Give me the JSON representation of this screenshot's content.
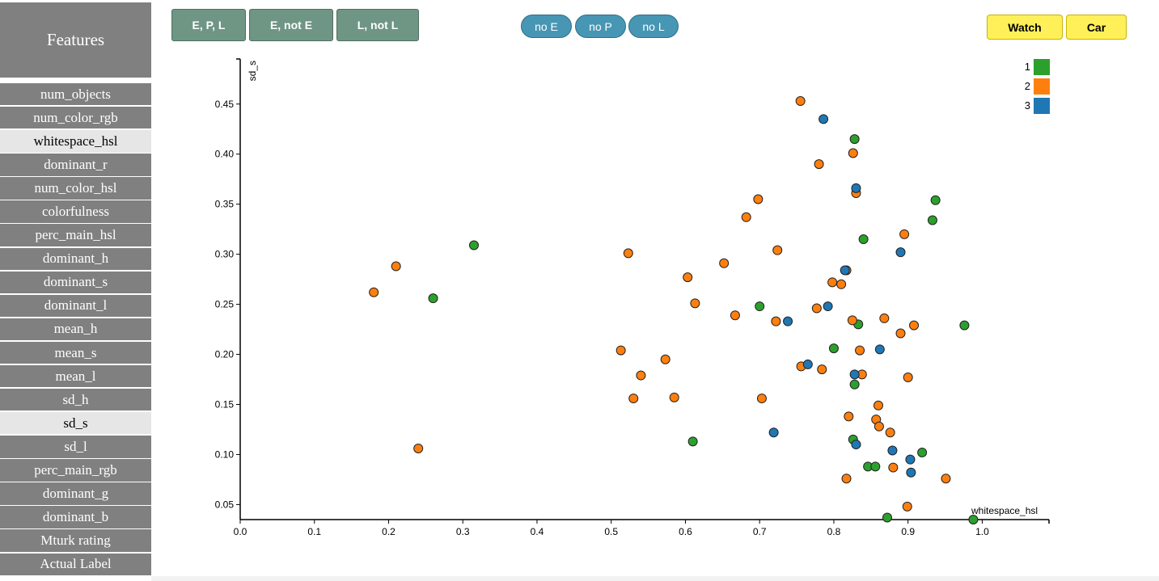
{
  "sidebar": {
    "title": "Features",
    "items": [
      {
        "label": "num_objects",
        "selected": false
      },
      {
        "label": "num_color_rgb",
        "selected": false
      },
      {
        "label": "whitespace_hsl",
        "selected": true
      },
      {
        "label": "dominant_r",
        "selected": false
      },
      {
        "label": "num_color_hsl",
        "selected": false
      },
      {
        "label": "colorfulness",
        "selected": false
      },
      {
        "label": "perc_main_hsl",
        "selected": false
      },
      {
        "label": "dominant_h",
        "selected": false
      },
      {
        "label": "dominant_s",
        "selected": false
      },
      {
        "label": "dominant_l",
        "selected": false
      },
      {
        "label": "mean_h",
        "selected": false
      },
      {
        "label": "mean_s",
        "selected": false
      },
      {
        "label": "mean_l",
        "selected": false
      },
      {
        "label": "sd_h",
        "selected": false
      },
      {
        "label": "sd_s",
        "selected": true
      },
      {
        "label": "sd_l",
        "selected": false
      },
      {
        "label": "perc_main_rgb",
        "selected": false
      },
      {
        "label": "dominant_g",
        "selected": false
      },
      {
        "label": "dominant_b",
        "selected": false
      },
      {
        "label": "Mturk rating",
        "selected": false
      },
      {
        "label": "Actual Label",
        "selected": false
      }
    ]
  },
  "toolbar": {
    "group_buttons": [
      "E, P, L",
      "E, not E",
      "L, not L"
    ],
    "filter_buttons": [
      "no E",
      "no P",
      "no L"
    ],
    "category_buttons": [
      "Watch",
      "Car"
    ]
  },
  "colors": {
    "series_1": "#2ca02c",
    "series_2": "#ff7f0e",
    "series_3": "#1f77b4"
  },
  "chart_data": {
    "type": "scatter",
    "xlabel": "whitespace_hsl",
    "ylabel": "sd_s",
    "xlim": [
      0.0,
      1.09
    ],
    "ylim": [
      0.035,
      0.495
    ],
    "xticks": [
      "0.0",
      "0.1",
      "0.2",
      "0.3",
      "0.4",
      "0.5",
      "0.6",
      "0.7",
      "0.8",
      "0.9",
      "1.0"
    ],
    "yticks": [
      "0.05",
      "0.10",
      "0.15",
      "0.20",
      "0.25",
      "0.30",
      "0.35",
      "0.40",
      "0.45"
    ],
    "legend": {
      "position": "top-right",
      "entries": [
        "1",
        "2",
        "3"
      ]
    },
    "series": [
      {
        "name": "1",
        "color": "#2ca02c",
        "points": [
          [
            0.315,
            0.309
          ],
          [
            0.26,
            0.256
          ],
          [
            0.7,
            0.248
          ],
          [
            0.61,
            0.113
          ],
          [
            0.828,
            0.415
          ],
          [
            0.937,
            0.354
          ],
          [
            0.933,
            0.334
          ],
          [
            0.84,
            0.315
          ],
          [
            0.833,
            0.23
          ],
          [
            0.976,
            0.229
          ],
          [
            0.8,
            0.206
          ],
          [
            0.828,
            0.17
          ],
          [
            0.826,
            0.115
          ],
          [
            0.919,
            0.102
          ],
          [
            0.846,
            0.088
          ],
          [
            0.856,
            0.088
          ],
          [
            0.872,
            0.037
          ],
          [
            0.988,
            0.035
          ]
        ]
      },
      {
        "name": "2",
        "color": "#ff7f0e",
        "points": [
          [
            0.755,
            0.453
          ],
          [
            0.826,
            0.401
          ],
          [
            0.78,
            0.39
          ],
          [
            0.83,
            0.361
          ],
          [
            0.698,
            0.355
          ],
          [
            0.682,
            0.337
          ],
          [
            0.895,
            0.32
          ],
          [
            0.523,
            0.301
          ],
          [
            0.724,
            0.304
          ],
          [
            0.652,
            0.291
          ],
          [
            0.817,
            0.284
          ],
          [
            0.603,
            0.277
          ],
          [
            0.21,
            0.288
          ],
          [
            0.18,
            0.262
          ],
          [
            0.798,
            0.272
          ],
          [
            0.81,
            0.27
          ],
          [
            0.613,
            0.251
          ],
          [
            0.667,
            0.239
          ],
          [
            0.777,
            0.246
          ],
          [
            0.722,
            0.233
          ],
          [
            0.825,
            0.234
          ],
          [
            0.868,
            0.236
          ],
          [
            0.908,
            0.229
          ],
          [
            0.89,
            0.221
          ],
          [
            0.513,
            0.204
          ],
          [
            0.573,
            0.195
          ],
          [
            0.835,
            0.204
          ],
          [
            0.756,
            0.188
          ],
          [
            0.784,
            0.185
          ],
          [
            0.54,
            0.179
          ],
          [
            0.838,
            0.18
          ],
          [
            0.9,
            0.177
          ],
          [
            0.53,
            0.156
          ],
          [
            0.585,
            0.157
          ],
          [
            0.703,
            0.156
          ],
          [
            0.86,
            0.149
          ],
          [
            0.82,
            0.138
          ],
          [
            0.857,
            0.135
          ],
          [
            0.861,
            0.128
          ],
          [
            0.876,
            0.122
          ],
          [
            0.24,
            0.106
          ],
          [
            0.88,
            0.087
          ],
          [
            0.951,
            0.076
          ],
          [
            0.817,
            0.076
          ],
          [
            0.899,
            0.048
          ]
        ]
      },
      {
        "name": "3",
        "color": "#1f77b4",
        "points": [
          [
            0.786,
            0.435
          ],
          [
            0.83,
            0.366
          ],
          [
            0.89,
            0.302
          ],
          [
            0.815,
            0.284
          ],
          [
            0.792,
            0.248
          ],
          [
            0.738,
            0.233
          ],
          [
            0.862,
            0.205
          ],
          [
            0.765,
            0.19
          ],
          [
            0.828,
            0.18
          ],
          [
            0.719,
            0.122
          ],
          [
            0.83,
            0.11
          ],
          [
            0.879,
            0.104
          ],
          [
            0.903,
            0.095
          ],
          [
            0.904,
            0.082
          ]
        ]
      }
    ]
  }
}
